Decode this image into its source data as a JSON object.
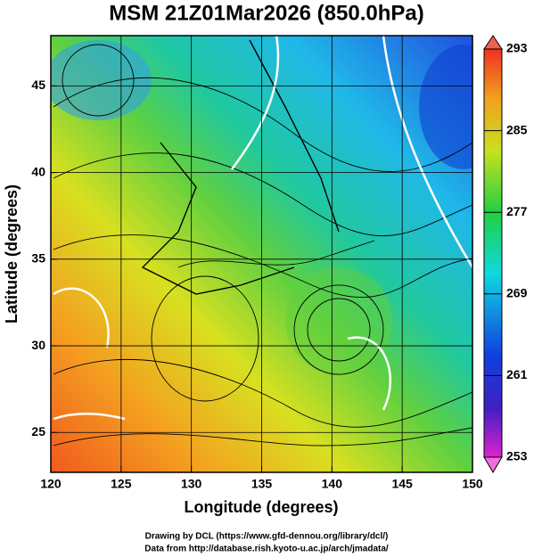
{
  "title": "MSM 21Z01Mar2026 (850.0hPa)",
  "xaxis": {
    "label": "Longitude (degrees)",
    "lim": [
      120,
      150
    ],
    "ticks": [
      120,
      125,
      130,
      135,
      140,
      145,
      150
    ]
  },
  "yaxis": {
    "label": "Latitude  (degrees)",
    "lim": [
      22.7,
      47.9
    ],
    "ticks": [
      25,
      30,
      35,
      40,
      45
    ]
  },
  "colorbar": {
    "lim": [
      253,
      293
    ],
    "ticks": [
      253,
      261,
      269,
      277,
      285,
      293
    ]
  },
  "credits": [
    "Drawing by DCL (https://www.gfd-dennou.org/library/dcl/)",
    "Data from http://database.rish.kyoto-u.ac.jp/arch/jmadata/"
  ]
}
